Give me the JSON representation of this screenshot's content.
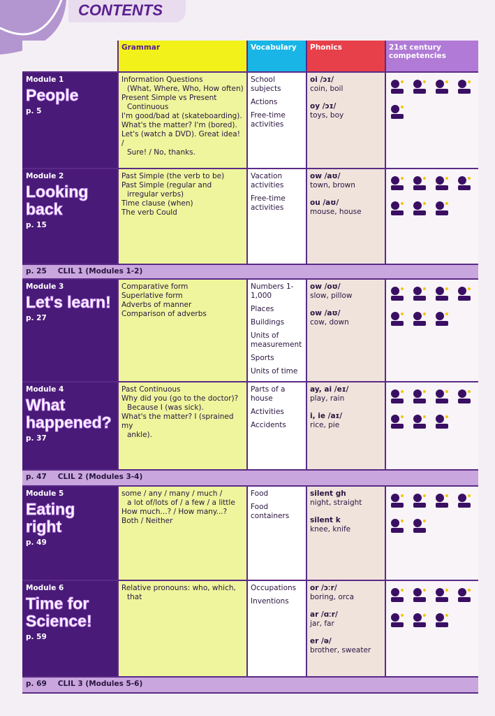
{
  "header": {
    "title": "CONTENTS"
  },
  "columns": {
    "grammar": "Grammar",
    "vocabulary": "Vocabulary",
    "phonics": "Phonics",
    "competencies": "21st century competencies"
  },
  "modules": [
    {
      "label": "Module 1",
      "title": "People",
      "page": "p. 5",
      "grammar": [
        [
          "Information Questions",
          "(What, Where, Who, How often)"
        ],
        [
          "Present Simple vs Present",
          "Continuous"
        ],
        [
          "I'm good/bad at (skateboarding)."
        ],
        [
          "What's the matter? I'm (bored)."
        ],
        [
          "Let's (watch a DVD). Great idea! /",
          "Sure! / No, thanks."
        ]
      ],
      "vocabulary": [
        "School subjects",
        "Actions",
        "Free-time activities"
      ],
      "phonics": [
        {
          "sound": "oi /ɔɪ/",
          "words": "coin, boil"
        },
        {
          "sound": "oy /ɔɪ/",
          "words": "toys, boy"
        }
      ]
    },
    {
      "label": "Module 2",
      "title": "Looking back",
      "page": "p. 15",
      "grammar": [
        [
          "Past Simple (the verb to be)"
        ],
        [
          "Past Simple (regular and",
          "irregular verbs)"
        ],
        [
          "Time clause (when)"
        ],
        [
          "The verb Could"
        ]
      ],
      "vocabulary": [
        "Vacation activities",
        "Free-time activities"
      ],
      "phonics": [
        {
          "sound": "ow /aʊ/",
          "words": "town, brown"
        },
        {
          "sound": "ou /aʊ/",
          "words": "mouse, house"
        }
      ]
    },
    {
      "label": "Module 3",
      "title": "Let's learn!",
      "page": "p. 27",
      "grammar": [
        [
          "Comparative form"
        ],
        [
          "Superlative form"
        ],
        [
          "Adverbs of manner"
        ],
        [
          "Comparison of adverbs"
        ]
      ],
      "vocabulary": [
        "Numbers 1-1,000",
        "Places",
        "Buildings",
        "Units of measurement",
        "Sports",
        "Units of time"
      ],
      "phonics": [
        {
          "sound": "ow /oʊ/",
          "words": "slow, pillow"
        },
        {
          "sound": "ow /aʊ/",
          "words": "cow, down"
        }
      ]
    },
    {
      "label": "Module 4",
      "title": "What happened?",
      "page": "p. 37",
      "grammar": [
        [
          "Past Continuous"
        ],
        [
          "Why did you (go to the doctor)?",
          "Because I (was sick)."
        ],
        [
          "What's the matter? I (sprained my",
          "ankle)."
        ]
      ],
      "vocabulary": [
        "Parts of a house",
        "Activities",
        "Accidents"
      ],
      "phonics": [
        {
          "sound": "ay, ai /eɪ/",
          "words": "play, rain"
        },
        {
          "sound": "i, ie /aɪ/",
          "words": "rice, pie"
        }
      ]
    },
    {
      "label": "Module 5",
      "title": "Eating right",
      "page": "p. 49",
      "grammar": [
        [
          "some / any / many / much /",
          "a lot of/lots of / a few / a little"
        ],
        [
          "How much...? / How many...?"
        ],
        [
          "Both / Neither"
        ]
      ],
      "vocabulary": [
        "Food",
        "Food containers"
      ],
      "phonics": [
        {
          "sound": "silent gh",
          "words": "night, straight"
        },
        {
          "sound": "silent k",
          "words": "knee, knife"
        }
      ]
    },
    {
      "label": "Module 6",
      "title": "Time for Science!",
      "page": "p. 59",
      "grammar": [
        [
          "Relative pronouns: who, which,",
          "that"
        ]
      ],
      "vocabulary": [
        "Occupations",
        "Inventions"
      ],
      "phonics": [
        {
          "sound": "or /ɔːr/",
          "words": "boring, orca"
        },
        {
          "sound": "ar /ɑːr/",
          "words": "jar, far"
        },
        {
          "sound": "er /ə/",
          "words": "brother, sweater"
        }
      ]
    }
  ],
  "clil": [
    {
      "page": "p. 25",
      "label": "CLIL 1 (Modules 1-2)"
    },
    {
      "page": "p. 47",
      "label": "CLIL 2 (Modules 3-4)"
    },
    {
      "page": "p. 69",
      "label": "CLIL 3 (Modules 5-6)"
    }
  ]
}
